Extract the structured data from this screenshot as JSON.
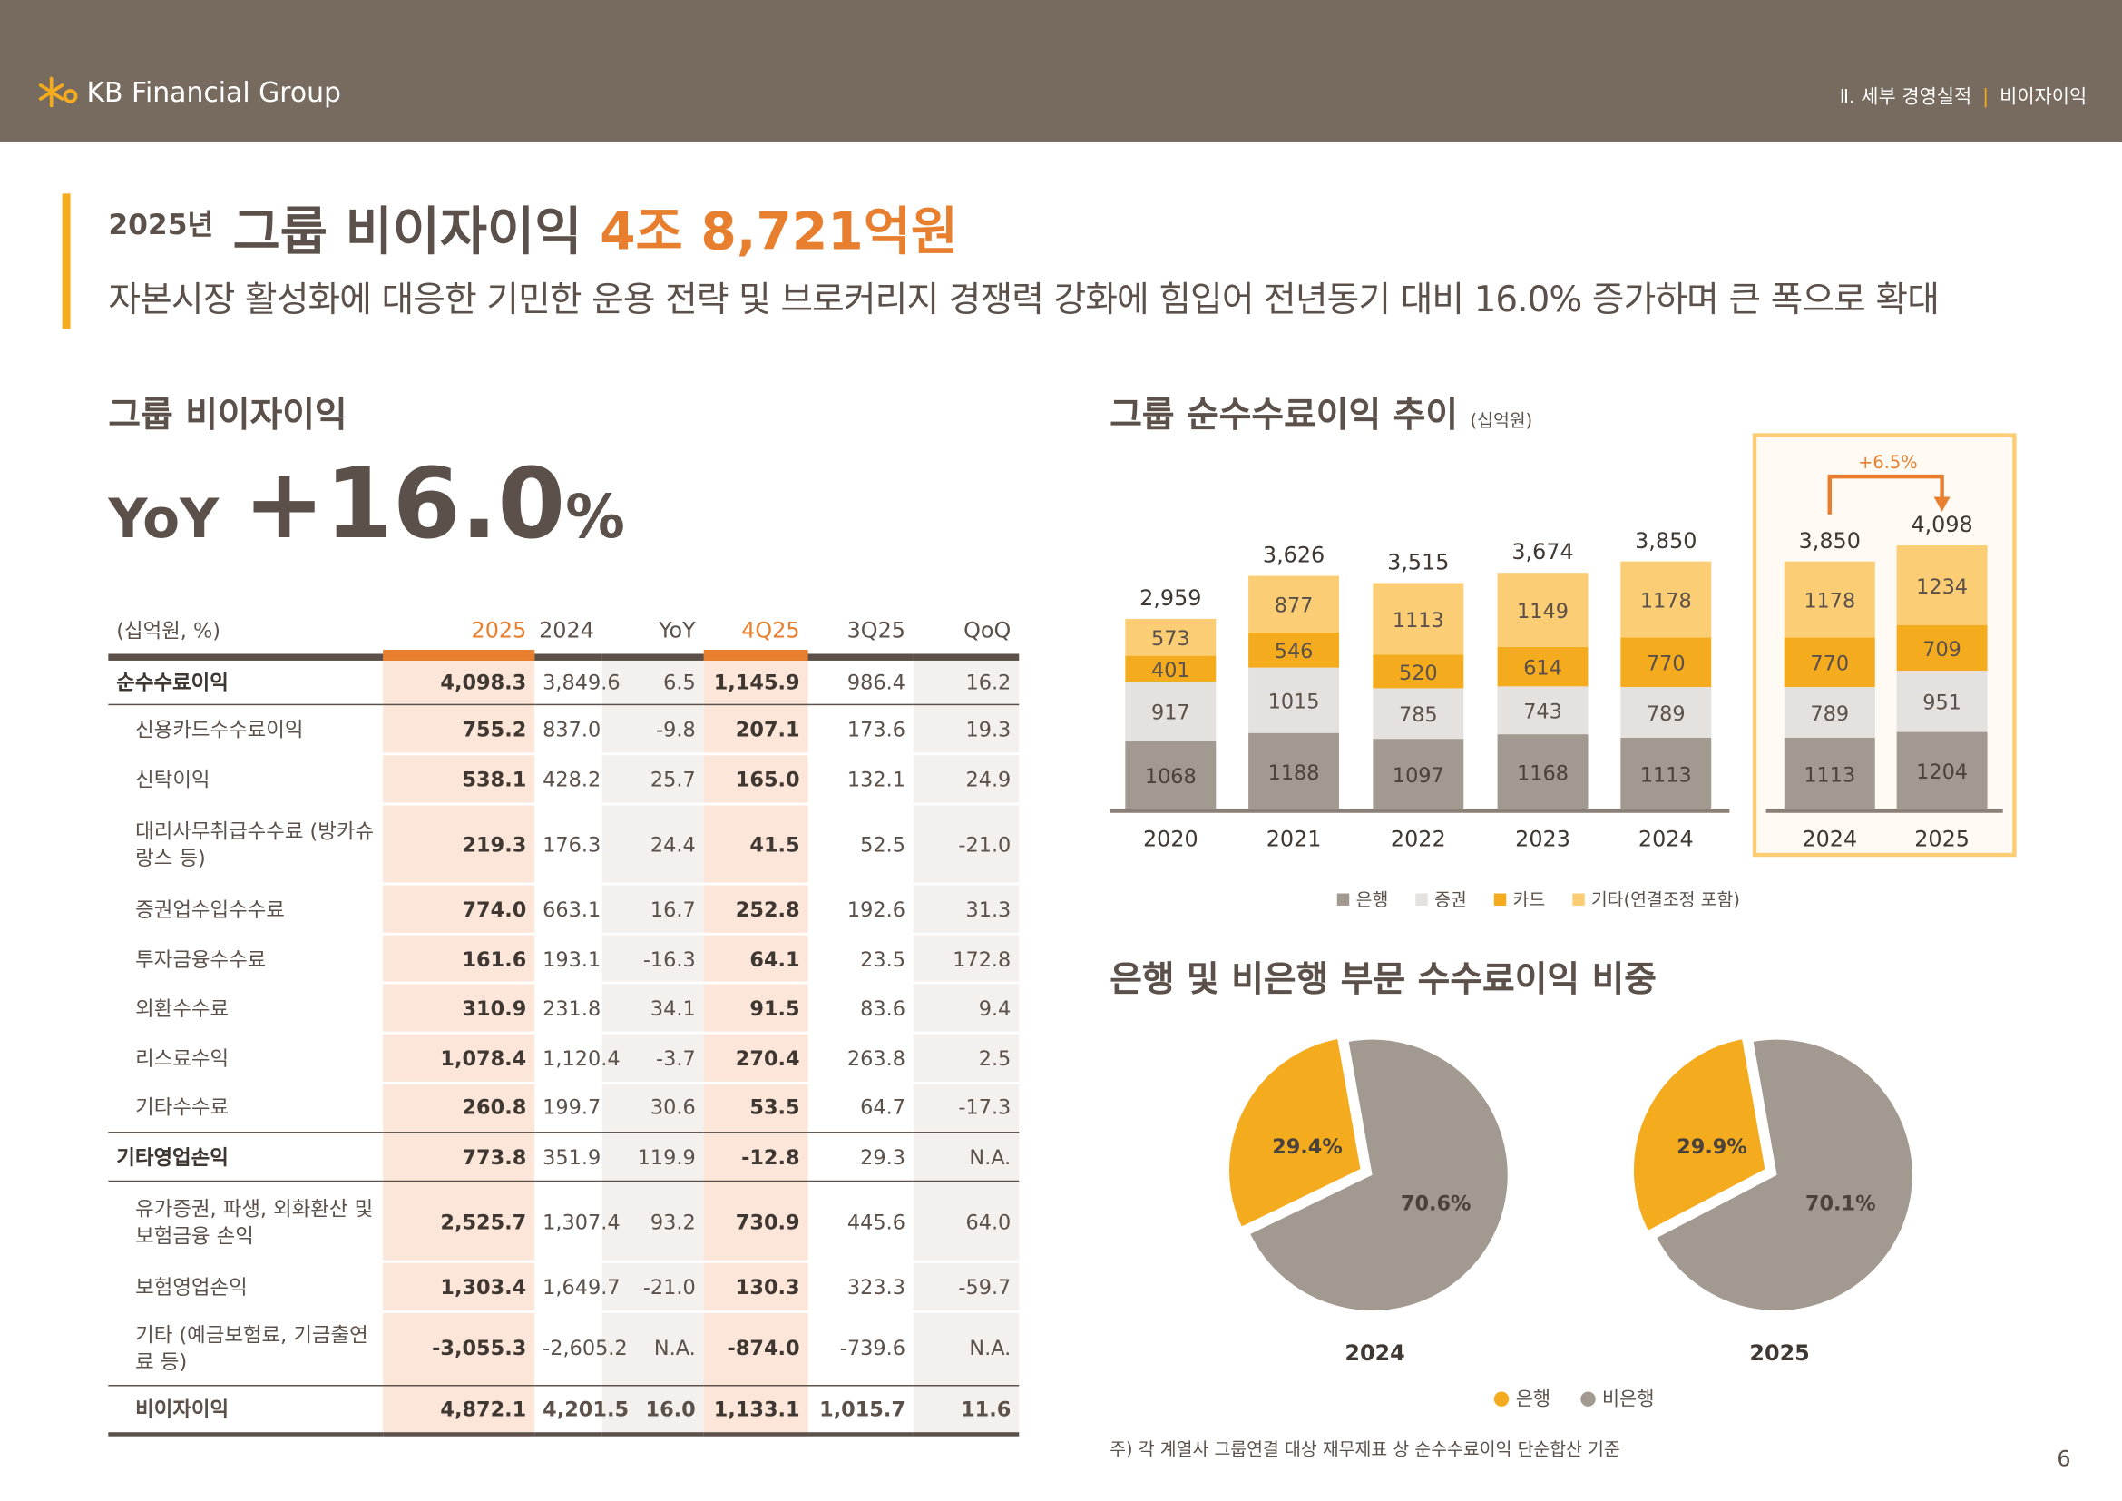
{
  "header": {
    "logo_text": "KB Financial Group",
    "section": "Ⅱ. 세부 경영실적",
    "page_topic": "비이자이익"
  },
  "headline": {
    "year": "2025년",
    "title": "그룹 비이자이익",
    "amount": "4조 8,721억원",
    "subtitle": "자본시장 활성화에 대응한 기민한 운용 전략 및 브로커리지 경쟁력 강화에 힘입어 전년동기 대비 16.0% 증가하며 큰 폭으로 확대"
  },
  "left": {
    "title": "그룹 비이자이익",
    "yoy_label": "YoY",
    "yoy_value": "+16.0",
    "yoy_pct": "%"
  },
  "table": {
    "headers": [
      "(십억원, %)",
      "2025",
      "2024",
      "YoY",
      "4Q25",
      "3Q25",
      "QoQ"
    ],
    "rows": [
      {
        "label": "순수수료이익",
        "type": "major",
        "values": [
          "4,098.3",
          "3,849.6",
          "6.5",
          "1,145.9",
          "986.4",
          "16.2"
        ]
      },
      {
        "label": "신용카드수수료이익",
        "type": "sub",
        "values": [
          "755.2",
          "837.0",
          "-9.8",
          "207.1",
          "173.6",
          "19.3"
        ]
      },
      {
        "label": "신탁이익",
        "type": "sub",
        "values": [
          "538.1",
          "428.2",
          "25.7",
          "165.0",
          "132.1",
          "24.9"
        ]
      },
      {
        "label": "대리사무취급수수료 (방카슈랑스 등)",
        "type": "sub",
        "values": [
          "219.3",
          "176.3",
          "24.4",
          "41.5",
          "52.5",
          "-21.0"
        ]
      },
      {
        "label": "증권업수입수수료",
        "type": "sub",
        "values": [
          "774.0",
          "663.1",
          "16.7",
          "252.8",
          "192.6",
          "31.3"
        ]
      },
      {
        "label": "투자금융수수료",
        "type": "sub",
        "values": [
          "161.6",
          "193.1",
          "-16.3",
          "64.1",
          "23.5",
          "172.8"
        ]
      },
      {
        "label": "외환수수료",
        "type": "sub",
        "values": [
          "310.9",
          "231.8",
          "34.1",
          "91.5",
          "83.6",
          "9.4"
        ]
      },
      {
        "label": "리스료수익",
        "type": "sub",
        "values": [
          "1,078.4",
          "1,120.4",
          "-3.7",
          "270.4",
          "263.8",
          "2.5"
        ]
      },
      {
        "label": "기타수수료",
        "type": "lastsub",
        "values": [
          "260.8",
          "199.7",
          "30.6",
          "53.5",
          "64.7",
          "-17.3"
        ]
      },
      {
        "label": "기타영업손익",
        "type": "major",
        "values": [
          "773.8",
          "351.9",
          "119.9",
          "-12.8",
          "29.3",
          "N.A."
        ]
      },
      {
        "label": "유가증권, 파생, 외화환산 및 보험금융 손익",
        "type": "sub",
        "values": [
          "2,525.7",
          "1,307.4",
          "93.2",
          "730.9",
          "445.6",
          "64.0"
        ]
      },
      {
        "label": "보험영업손익",
        "type": "sub",
        "values": [
          "1,303.4",
          "1,649.7",
          "-21.0",
          "130.3",
          "323.3",
          "-59.7"
        ]
      },
      {
        "label": "기타 (예금보험료, 기금출연료 등)",
        "type": "lastsub",
        "values": [
          "-3,055.3",
          "-2,605.2",
          "N.A.",
          "-874.0",
          "-739.6",
          "N.A."
        ]
      },
      {
        "label": "비이자이익",
        "type": "total",
        "values": [
          "4,872.1",
          "4,201.5",
          "16.0",
          "1,133.1",
          "1,015.7",
          "11.6"
        ]
      }
    ]
  },
  "chart_data": [
    {
      "type": "bar",
      "stacked": true,
      "title": "그룹 순수수료이익 추이",
      "unit": "(십억원)",
      "categories": [
        "2020",
        "2021",
        "2022",
        "2023",
        "2024"
      ],
      "series": [
        {
          "name": "은행",
          "values": [
            1068,
            1188,
            1097,
            1168,
            1113
          ]
        },
        {
          "name": "증권",
          "values": [
            917,
            1015,
            785,
            743,
            789
          ]
        },
        {
          "name": "카드",
          "values": [
            401,
            546,
            520,
            614,
            770
          ]
        },
        {
          "name": "기타(연결조정 포함)",
          "values": [
            573,
            877,
            1113,
            1149,
            1178
          ]
        }
      ],
      "totals": [
        "2,959",
        "3,626",
        "3,515",
        "3,674",
        "3,850"
      ]
    },
    {
      "type": "bar",
      "stacked": true,
      "highlight": true,
      "categories": [
        "2024",
        "2025"
      ],
      "series": [
        {
          "name": "은행",
          "values": [
            1113,
            1204
          ]
        },
        {
          "name": "증권",
          "values": [
            789,
            951
          ]
        },
        {
          "name": "카드",
          "values": [
            770,
            709
          ]
        },
        {
          "name": "기타(연결조정 포함)",
          "values": [
            1178,
            1234
          ]
        }
      ],
      "totals": [
        "3,850",
        "4,098"
      ],
      "growth_label": "+6.5%"
    },
    {
      "type": "pie",
      "title": "은행 및 비은행 부문 수수료이익 비중",
      "pies": [
        {
          "label": "2024",
          "slices": [
            {
              "name": "은행",
              "value": 29.4,
              "text": "29.4%"
            },
            {
              "name": "비은행",
              "value": 70.6,
              "text": "70.6%"
            }
          ]
        },
        {
          "label": "2025",
          "slices": [
            {
              "name": "은행",
              "value": 29.9,
              "text": "29.9%"
            },
            {
              "name": "비은행",
              "value": 70.1,
              "text": "70.1%"
            }
          ]
        }
      ],
      "legend": [
        "은행",
        "비은행"
      ]
    }
  ],
  "colors": {
    "header": "#776b5f",
    "accent": "#e87f2f",
    "yellow": "#f5ab1e",
    "bank": "#a29a90",
    "securities": "#e4e1de",
    "card": "#f5ab1e",
    "other": "#fbcd74"
  },
  "footnote": "주) 각 계열사 그룹연결 대상 재무제표 상 순수수료이익 단순합산 기준",
  "page_number": "6"
}
